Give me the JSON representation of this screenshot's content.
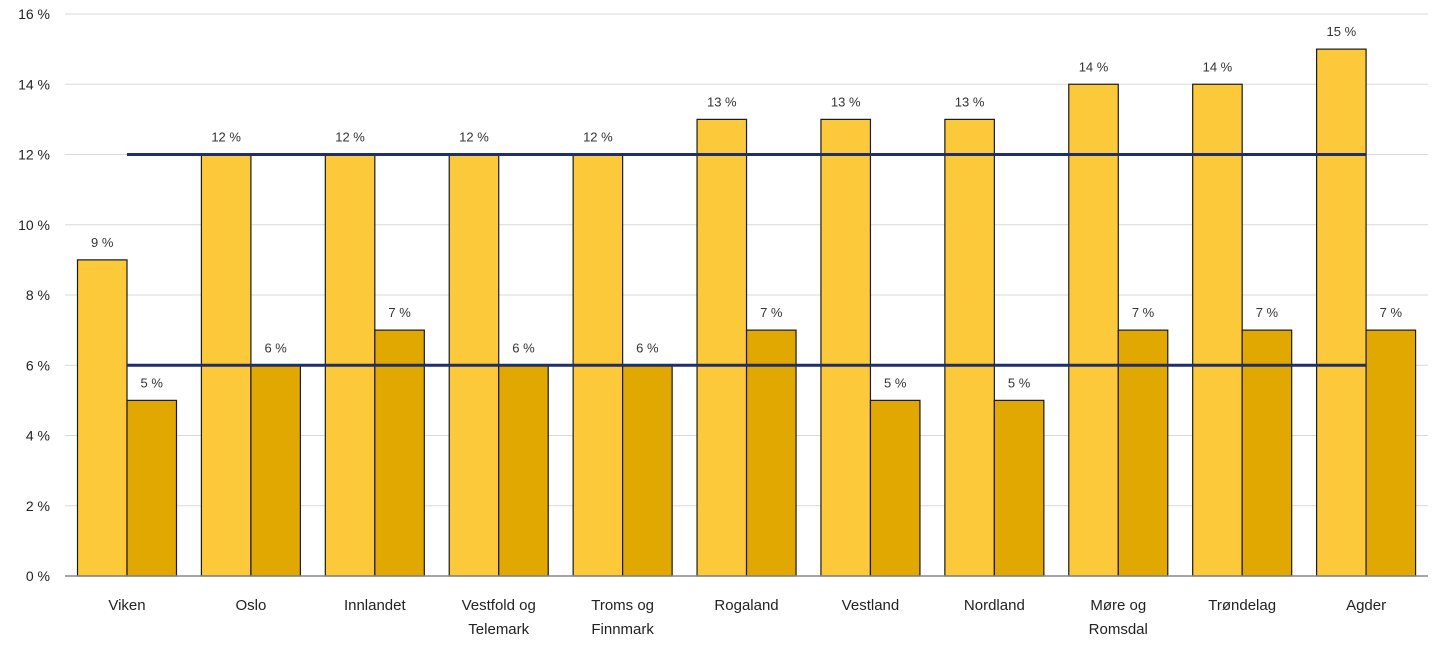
{
  "chart_data": {
    "type": "bar",
    "title": "",
    "xlabel": "",
    "ylabel": "",
    "ylim": [
      0,
      16
    ],
    "y_ticks": [
      "0 %",
      "2 %",
      "4 %",
      "6 %",
      "8 %",
      "10 %",
      "12 %",
      "14 %",
      "16 %"
    ],
    "y_tick_values": [
      0,
      2,
      4,
      6,
      8,
      10,
      12,
      14,
      16
    ],
    "grid": true,
    "categories": [
      [
        "Viken"
      ],
      [
        "Oslo"
      ],
      [
        "Innlandet"
      ],
      [
        "Vestfold og",
        "Telemark"
      ],
      [
        "Troms og",
        "Finnmark"
      ],
      [
        "Rogaland"
      ],
      [
        "Vestland"
      ],
      [
        "Nordland"
      ],
      [
        "Møre og",
        "Romsdal"
      ],
      [
        "Trøndelag"
      ],
      [
        "Agder"
      ]
    ],
    "series": [
      {
        "color": "#FCC93A",
        "values": [
          9,
          12,
          12,
          12,
          12,
          13,
          13,
          13,
          14,
          14,
          15
        ],
        "labels": [
          "9 %",
          "12 %",
          "12 %",
          "12 %",
          "12 %",
          "13 %",
          "13 %",
          "13 %",
          "14 %",
          "14 %",
          "15 %"
        ]
      },
      {
        "color": "#E0A800",
        "values": [
          5,
          6,
          7,
          6,
          6,
          7,
          5,
          5,
          7,
          7,
          7
        ],
        "labels": [
          "5 %",
          "6 %",
          "7 %",
          "6 %",
          "6 %",
          "7 %",
          "5 %",
          "5 %",
          "7 %",
          "7 %",
          "7 %"
        ]
      }
    ],
    "reference_lines": [
      {
        "value": 12,
        "color": "#1F2F6B"
      },
      {
        "value": 6,
        "color": "#1F2F6B"
      }
    ]
  }
}
